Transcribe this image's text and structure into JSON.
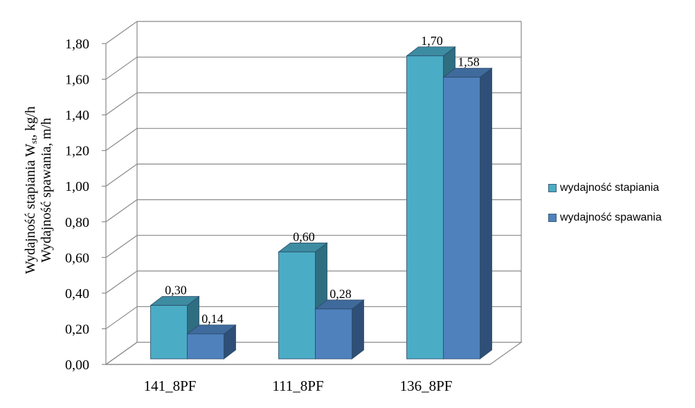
{
  "chart_data": {
    "type": "bar",
    "categories": [
      "141_8PF",
      "111_8PF",
      "136_8PF"
    ],
    "series": [
      {
        "name": "wydajność stapiania",
        "values": [
          0.3,
          0.6,
          1.7
        ],
        "data_labels": [
          "0,30",
          "0,60",
          "1,70"
        ]
      },
      {
        "name": "wydajność spawania",
        "values": [
          0.14,
          0.28,
          1.58
        ],
        "data_labels": [
          "0,14",
          "0,28",
          "1,58"
        ]
      }
    ],
    "ylabel_line1": "Wydajność stapiania W",
    "ylabel_line1_sub": "st",
    "ylabel_line1_tail": ", kg/h",
    "ylabel_line2": "Wydajność spawania, m/h",
    "ylim": [
      0,
      1.8
    ],
    "ytick_values": [
      0,
      0.2,
      0.4,
      0.6,
      0.8,
      1.0,
      1.2,
      1.4,
      1.6,
      1.8
    ],
    "ytick_labels": [
      "0,00",
      "0,20",
      "0,40",
      "0,60",
      "0,80",
      "1,00",
      "1,20",
      "1,40",
      "1,60",
      "1,80"
    ],
    "grid": true,
    "legend_position": "right",
    "colors": {
      "stapiania_front": "#4BACC6",
      "stapiania_top": "#3D8CA1",
      "stapiania_side": "#2F6E80",
      "spawania_front": "#4F81BD",
      "spawania_top": "#3F6A9C",
      "spawania_side": "#2F4F78"
    }
  }
}
